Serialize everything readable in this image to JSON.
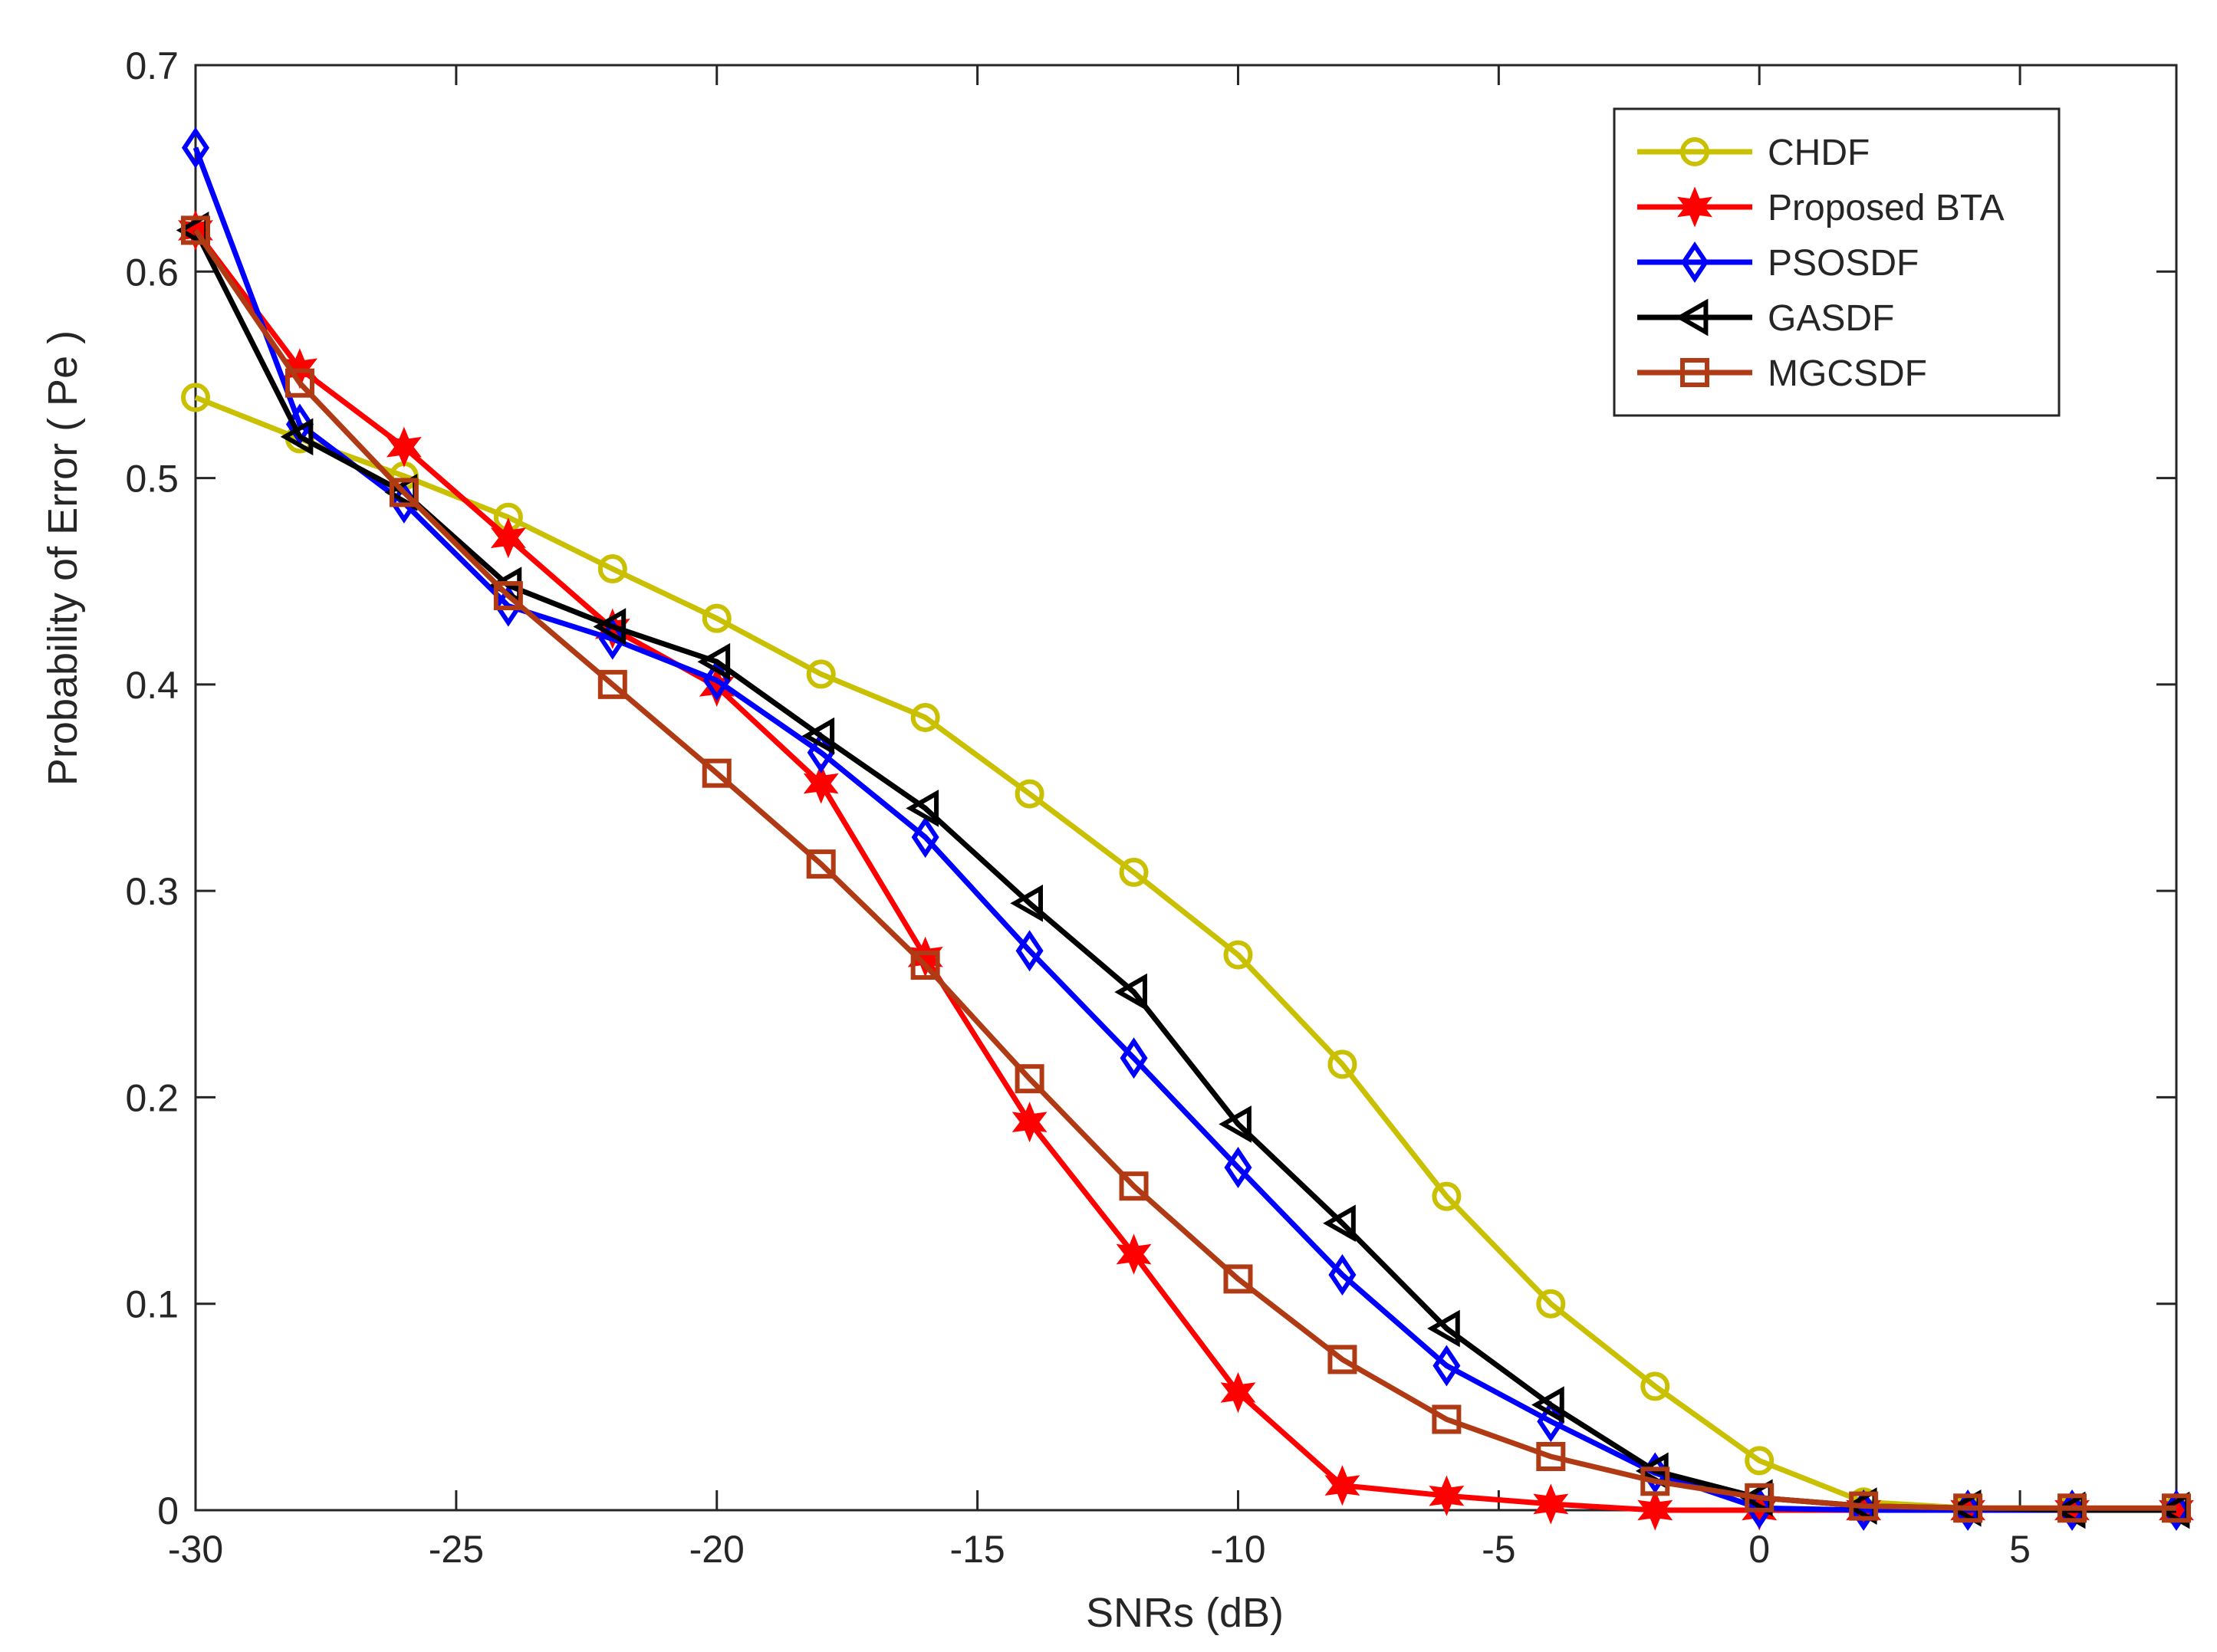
{
  "chart_data": {
    "type": "line",
    "title": "",
    "xlabel": "SNRs (dB)",
    "ylabel": "Probability of Error ( Pe )",
    "xlim": [
      -30,
      8
    ],
    "ylim": [
      0,
      0.7
    ],
    "xticks": [
      -30,
      -25,
      -20,
      -15,
      -10,
      -5,
      0,
      5
    ],
    "yticks": [
      0,
      0.1,
      0.2,
      0.3,
      0.4,
      0.5,
      0.6,
      0.7
    ],
    "grid": false,
    "legend_position": "top-right",
    "x": [
      -30,
      -28,
      -26,
      -24,
      -22,
      -20,
      -18,
      -16,
      -14,
      -12,
      -10,
      -8,
      -6,
      -4,
      -2,
      0,
      2,
      4,
      6,
      8
    ],
    "series": [
      {
        "name": "CHDF",
        "color": "#c8c000",
        "marker": "circle",
        "values": [
          0.539,
          0.519,
          0.501,
          0.481,
          0.456,
          0.432,
          0.405,
          0.384,
          0.347,
          0.309,
          0.269,
          0.216,
          0.152,
          0.1,
          0.06,
          0.024,
          0.004,
          0.001,
          0.001,
          0.0
        ]
      },
      {
        "name": "Proposed BTA",
        "color": "#ff0000",
        "marker": "hexagram",
        "values": [
          0.62,
          0.553,
          0.515,
          0.471,
          0.427,
          0.399,
          0.352,
          0.268,
          0.188,
          0.124,
          0.057,
          0.012,
          0.007,
          0.003,
          0.0,
          0.0,
          0.0,
          0.0,
          0.0,
          0.0
        ]
      },
      {
        "name": "PSOSDF",
        "color": "#0000ff",
        "marker": "diamond",
        "values": [
          0.66,
          0.526,
          0.488,
          0.438,
          0.422,
          0.402,
          0.367,
          0.326,
          0.271,
          0.219,
          0.166,
          0.114,
          0.07,
          0.043,
          0.018,
          0.001,
          0.0,
          0.0,
          0.0,
          0.0
        ]
      },
      {
        "name": "GASDF",
        "color": "#000000",
        "marker": "triangle-left",
        "values": [
          0.62,
          0.52,
          0.493,
          0.448,
          0.428,
          0.411,
          0.375,
          0.34,
          0.294,
          0.251,
          0.187,
          0.139,
          0.088,
          0.051,
          0.019,
          0.006,
          0.002,
          0.001,
          0.0,
          0.0
        ]
      },
      {
        "name": "MGCSDF",
        "color": "#b03a14",
        "marker": "square",
        "values": [
          0.62,
          0.546,
          0.493,
          0.443,
          0.4,
          0.357,
          0.313,
          0.264,
          0.209,
          0.157,
          0.112,
          0.073,
          0.044,
          0.026,
          0.014,
          0.006,
          0.002,
          0.001,
          0.001,
          0.001
        ]
      }
    ]
  }
}
